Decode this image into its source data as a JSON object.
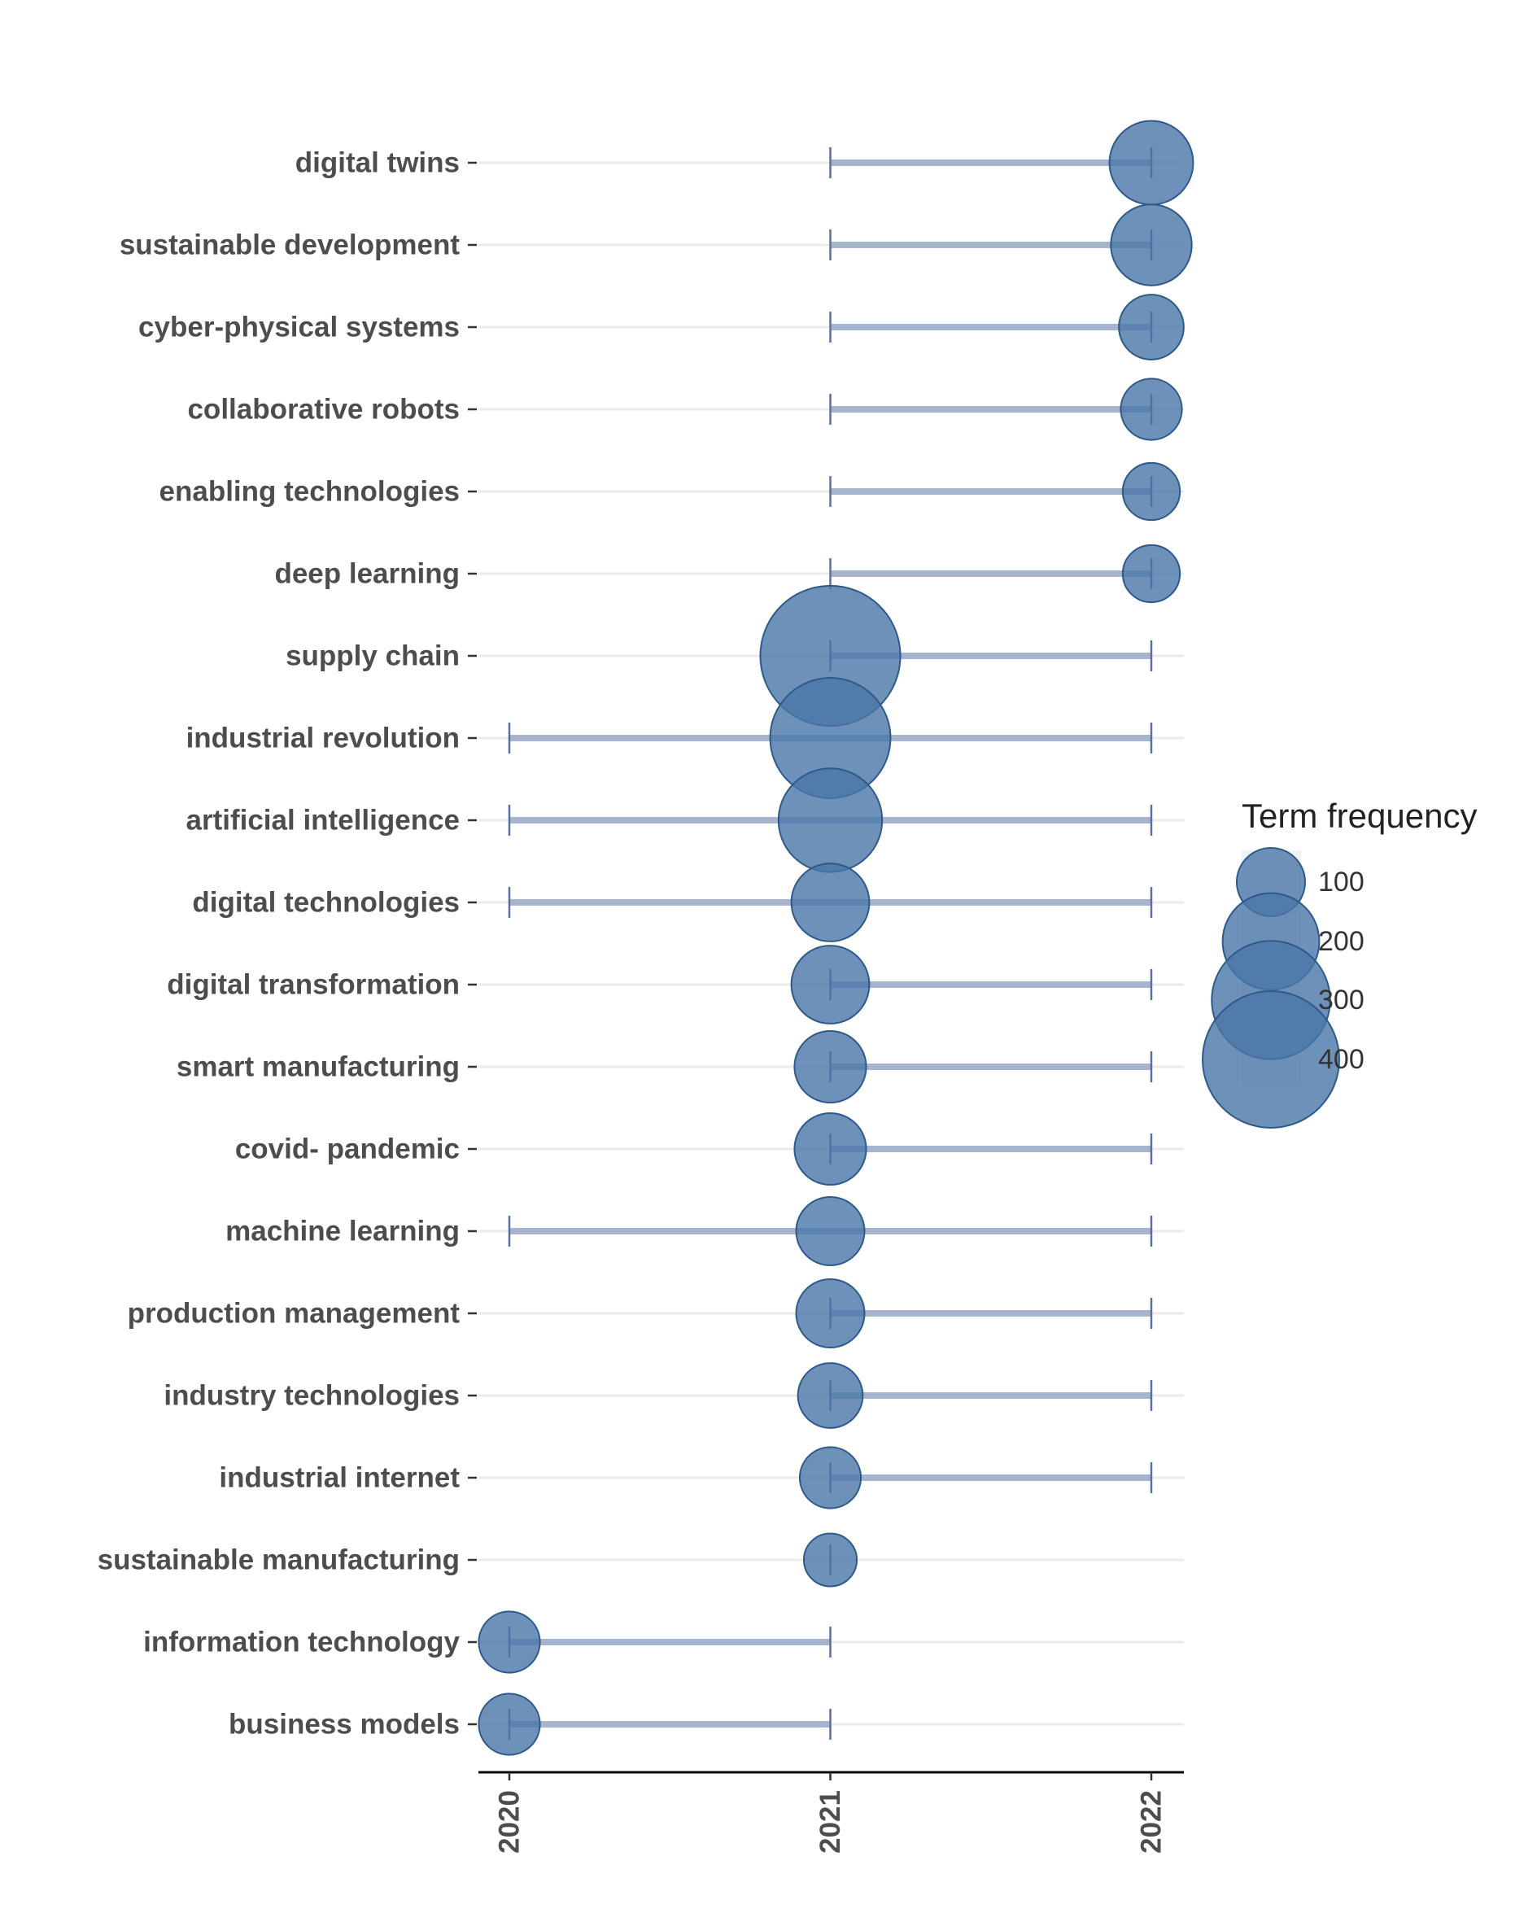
{
  "chart_data": {
    "type": "scatter",
    "subtype": "trend-topics-range",
    "title": "",
    "xlabel": "",
    "ylabel": "",
    "x_ticks": [
      "2020",
      "2021",
      "2022"
    ],
    "xlim": [
      2020,
      2022
    ],
    "grid": "horizontal",
    "legend_position": "right",
    "colors": {
      "point": "#4a76a8",
      "point_stroke": "#2e5a8a",
      "range_line": "#a6b4ce",
      "tick_mark": "#5a6fa3",
      "grid": "#ebebeb",
      "axis": "#000000"
    },
    "legend": {
      "title": "Term frequency",
      "items": [
        {
          "label": "100",
          "value": 100
        },
        {
          "label": "200",
          "value": 200
        },
        {
          "label": "300",
          "value": 300
        },
        {
          "label": "400",
          "value": 400
        }
      ]
    },
    "series": [
      {
        "term": "digital twins",
        "start": 2021,
        "median": 2022,
        "end": 2022,
        "frequency": 150
      },
      {
        "term": "sustainable development",
        "start": 2021,
        "median": 2022,
        "end": 2022,
        "frequency": 140
      },
      {
        "term": "cyber-physical systems",
        "start": 2021,
        "median": 2022,
        "end": 2022,
        "frequency": 90
      },
      {
        "term": "collaborative robots",
        "start": 2021,
        "median": 2022,
        "end": 2022,
        "frequency": 80
      },
      {
        "term": "enabling technologies",
        "start": 2021,
        "median": 2022,
        "end": 2022,
        "frequency": 70
      },
      {
        "term": "deep learning",
        "start": 2021,
        "median": 2022,
        "end": 2022,
        "frequency": 70
      },
      {
        "term": "supply chain",
        "start": 2021,
        "median": 2021,
        "end": 2022,
        "frequency": 420
      },
      {
        "term": "industrial revolution",
        "start": 2020,
        "median": 2021,
        "end": 2022,
        "frequency": 310
      },
      {
        "term": "artificial intelligence",
        "start": 2020,
        "median": 2021,
        "end": 2022,
        "frequency": 230
      },
      {
        "term": "digital technologies",
        "start": 2020,
        "median": 2021,
        "end": 2022,
        "frequency": 130
      },
      {
        "term": "digital transformation",
        "start": 2021,
        "median": 2021,
        "end": 2022,
        "frequency": 130
      },
      {
        "term": "smart manufacturing",
        "start": 2021,
        "median": 2021,
        "end": 2022,
        "frequency": 110
      },
      {
        "term": "covid- pandemic",
        "start": 2021,
        "median": 2021,
        "end": 2022,
        "frequency": 110
      },
      {
        "term": "machine learning",
        "start": 2020,
        "median": 2021,
        "end": 2022,
        "frequency": 100
      },
      {
        "term": "production management",
        "start": 2021,
        "median": 2021,
        "end": 2022,
        "frequency": 100
      },
      {
        "term": "industry technologies",
        "start": 2021,
        "median": 2021,
        "end": 2022,
        "frequency": 90
      },
      {
        "term": "industrial internet",
        "start": 2021,
        "median": 2021,
        "end": 2022,
        "frequency": 80
      },
      {
        "term": "sustainable manufacturing",
        "start": 2021,
        "median": 2021,
        "end": 2021,
        "frequency": 60
      },
      {
        "term": "information technology",
        "start": 2020,
        "median": 2020,
        "end": 2021,
        "frequency": 80
      },
      {
        "term": "business models",
        "start": 2020,
        "median": 2020,
        "end": 2021,
        "frequency": 80
      }
    ]
  }
}
